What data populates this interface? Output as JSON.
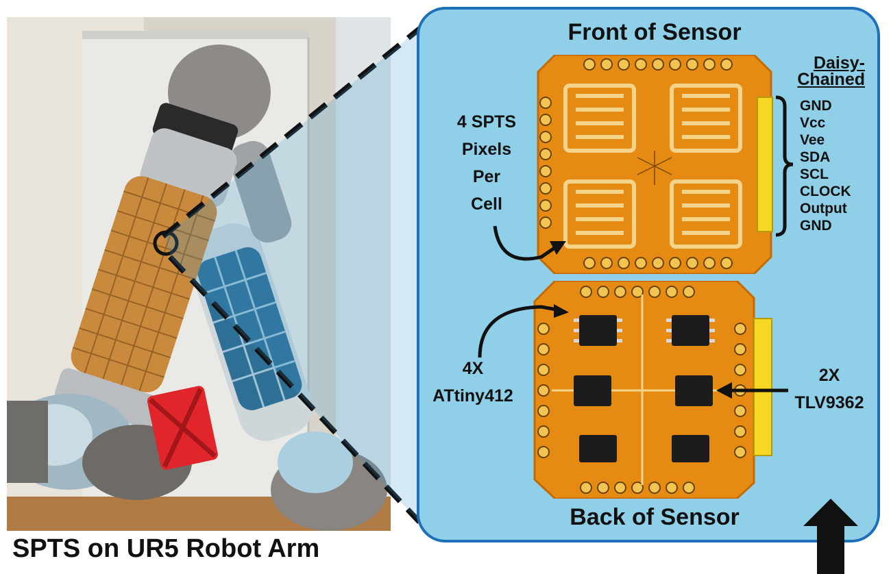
{
  "photo_caption": "SPTS on UR5 Robot Arm",
  "panel": {
    "front_title": "Front of Sensor",
    "back_title": "Back of Sensor"
  },
  "annotations": {
    "pixels_label": [
      "4 SPTS",
      "Pixels",
      "Per",
      "Cell"
    ],
    "attiny_label": [
      "4X",
      "ATtiny412"
    ],
    "tlv_label": [
      "2X",
      "TLV9362"
    ],
    "daisy_chain_label": [
      "Daisy-",
      "Chained"
    ],
    "pin_list": [
      "GND",
      "Vcc",
      "Vee",
      "SDA",
      "SCL",
      "CLOCK",
      "Output",
      "GND"
    ]
  },
  "colors": {
    "panel_fill": "#8fcfe8",
    "panel_border": "#1d6fb8",
    "pcb": "#e58a12",
    "ic": "#1c1c1c"
  }
}
